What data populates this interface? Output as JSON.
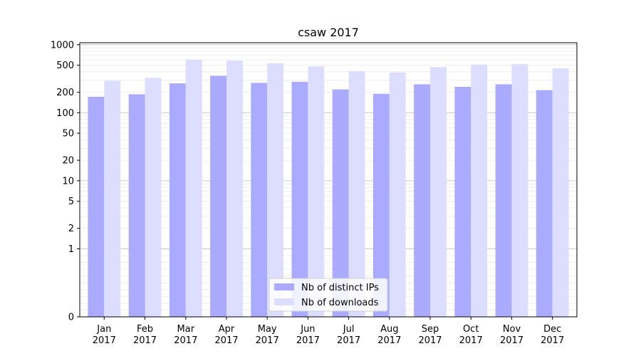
{
  "chart_data": {
    "type": "bar",
    "title": "csaw 2017",
    "xlabel": "",
    "ylabel": "",
    "yscale": "symlog",
    "ylim": [
      0,
      1000
    ],
    "grid": true,
    "legend_position": "bottom-center",
    "categories": [
      [
        "Jan",
        "2017"
      ],
      [
        "Feb",
        "2017"
      ],
      [
        "Mar",
        "2017"
      ],
      [
        "Apr",
        "2017"
      ],
      [
        "May",
        "2017"
      ],
      [
        "Jun",
        "2017"
      ],
      [
        "Jul",
        "2017"
      ],
      [
        "Aug",
        "2017"
      ],
      [
        "Sep",
        "2017"
      ],
      [
        "Oct",
        "2017"
      ],
      [
        "Nov",
        "2017"
      ],
      [
        "Dec",
        "2017"
      ]
    ],
    "y_ticks": [
      0,
      1,
      2,
      5,
      10,
      20,
      50,
      100,
      200,
      500,
      1000
    ],
    "series": [
      {
        "name": "Nb of distinct IPs",
        "color": "#aaaaff",
        "values": [
          172,
          187,
          270,
          350,
          275,
          285,
          220,
          190,
          262,
          240,
          262,
          215
        ]
      },
      {
        "name": "Nb of downloads",
        "color": "#ddddff",
        "values": [
          295,
          325,
          605,
          585,
          535,
          480,
          410,
          390,
          470,
          510,
          520,
          450
        ]
      }
    ]
  }
}
